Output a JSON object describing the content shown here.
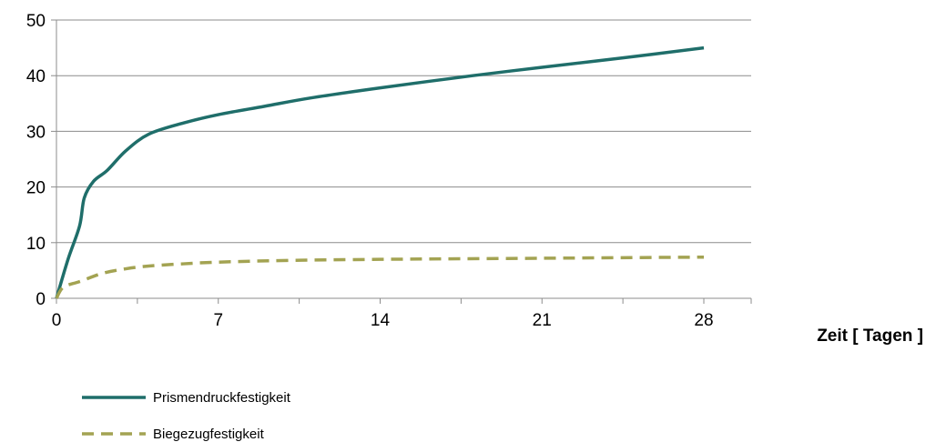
{
  "chart_data": {
    "type": "line",
    "title": "",
    "xlabel": "Zeit [ Tagen ]",
    "ylabel": "",
    "xlim": [
      0,
      28
    ],
    "ylim": [
      0,
      50
    ],
    "xticks": [
      0,
      7,
      14,
      21,
      28
    ],
    "yticks": [
      0,
      10,
      20,
      30,
      40,
      50
    ],
    "grid": "horizontal",
    "legend_position": "bottom-left",
    "series": [
      {
        "name": "Prismendruckfestigkeit",
        "color": "#1f6e6a",
        "style": "solid",
        "points": [
          [
            0,
            0
          ],
          [
            0.5,
            7
          ],
          [
            1,
            13
          ],
          [
            1.2,
            18
          ],
          [
            1.6,
            21
          ],
          [
            2.2,
            23
          ],
          [
            3,
            26.5
          ],
          [
            4,
            29.5
          ],
          [
            5.5,
            31.5
          ],
          [
            7,
            33
          ],
          [
            9,
            34.5
          ],
          [
            11,
            36
          ],
          [
            14,
            37.8
          ],
          [
            18,
            40
          ],
          [
            21,
            41.5
          ],
          [
            24.5,
            43.2
          ],
          [
            28,
            45
          ]
        ]
      },
      {
        "name": "Biegezugfestigkeit",
        "color": "#a3a352",
        "style": "dashed",
        "points": [
          [
            0,
            0
          ],
          [
            0.3,
            2
          ],
          [
            1,
            3
          ],
          [
            2,
            4.5
          ],
          [
            3,
            5.3
          ],
          [
            4,
            5.8
          ],
          [
            5.5,
            6.2
          ],
          [
            7,
            6.5
          ],
          [
            10,
            6.8
          ],
          [
            14,
            7
          ],
          [
            21,
            7.2
          ],
          [
            28,
            7.4
          ]
        ]
      }
    ]
  }
}
